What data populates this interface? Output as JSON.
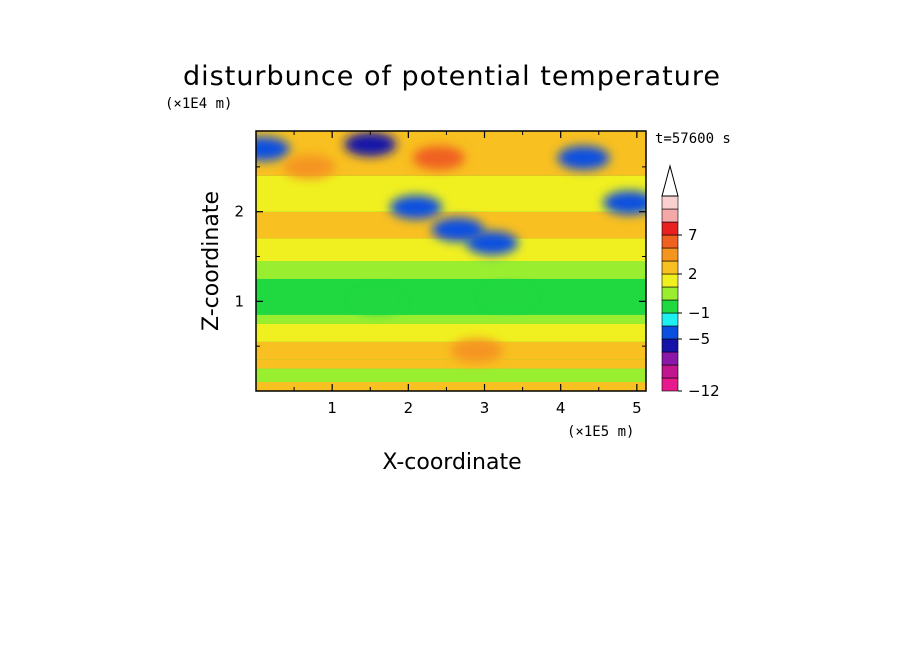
{
  "chart_data": {
    "type": "heatmap",
    "title": "disturbunce of potential temperature",
    "xlabel": "X-coordinate",
    "ylabel": "Z-coordinate",
    "x_unit_label": "(×1E5 m)",
    "y_unit_label": "(×1E4 m)",
    "time_label": "t=57600 s",
    "xlim": [
      0,
      5.12
    ],
    "ylim": [
      0,
      2.9
    ],
    "x_ticks": [
      1,
      2,
      3,
      4,
      5
    ],
    "y_ticks": [
      1,
      2
    ],
    "x_tick_labels": [
      "1",
      "2",
      "3",
      "4",
      "5"
    ],
    "y_tick_labels": [
      "1",
      "2"
    ],
    "colorbar": {
      "levels": [
        -12,
        -11,
        -10,
        -9,
        -5,
        -3,
        -1,
        0,
        1,
        2,
        3,
        5,
        7,
        9,
        11
      ],
      "tick_values": [
        -12,
        -5,
        -1,
        2,
        7
      ],
      "tick_labels": [
        "−12",
        "−5",
        "−1",
        "2",
        "7"
      ],
      "colors": [
        "#e8198c",
        "#c0168f",
        "#8b17a8",
        "#1414a8",
        "#0a4fe0",
        "#1ef0f0",
        "#20d840",
        "#9aee30",
        "#f0f020",
        "#f8c020",
        "#f59520",
        "#f06020",
        "#e82020",
        "#f5a8a8",
        "#f8d0d0"
      ],
      "extend": "max"
    },
    "description_features": [
      {
        "x": 1.5,
        "z": 2.75,
        "value": -6
      },
      {
        "x": 0.1,
        "z": 2.7,
        "value": -4
      },
      {
        "x": 2.4,
        "z": 2.6,
        "value": 6
      },
      {
        "x": 2.1,
        "z": 2.05,
        "value": -5
      },
      {
        "x": 2.65,
        "z": 1.8,
        "value": -5
      },
      {
        "x": 3.1,
        "z": 1.65,
        "value": -5
      },
      {
        "x": 4.3,
        "z": 2.6,
        "value": -5
      },
      {
        "x": 4.9,
        "z": 2.1,
        "value": -4
      },
      {
        "x": 1.6,
        "z": 1.0,
        "value": -1
      },
      {
        "x": 3.3,
        "z": 1.05,
        "value": -1
      },
      {
        "x": 2.9,
        "z": 0.45,
        "value": 3
      },
      {
        "x": 0.7,
        "z": 2.5,
        "value": 4
      }
    ]
  }
}
